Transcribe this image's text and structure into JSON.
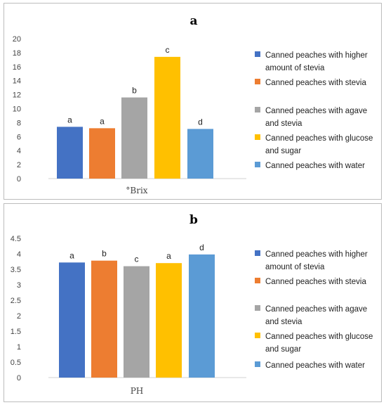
{
  "chart_data": [
    {
      "type": "bar",
      "panel_label": "a",
      "xlabel": "°Brix",
      "ylim": [
        0,
        20
      ],
      "yticks": [
        "0",
        "2",
        "4",
        "6",
        "8",
        "10",
        "12",
        "14",
        "16",
        "18",
        "20"
      ],
      "grid": false,
      "legend_position": "right",
      "series": [
        {
          "name": "Canned peaches with higher amount of stevia",
          "legend_lines": [
            "Canned peaches with higher",
            "amount of stevia"
          ],
          "value": 7.4,
          "label": "a",
          "color": "#4472C4"
        },
        {
          "name": "Canned peaches with stevia",
          "legend_lines": [
            "Canned peaches with stevia"
          ],
          "value": 7.2,
          "label": "a",
          "color": "#ED7D31"
        },
        {
          "name": "Canned peaches with agave and stevia",
          "legend_lines": [
            "Canned peaches with agave",
            "and stevia"
          ],
          "value": 11.6,
          "label": "b",
          "color": "#A5A5A5"
        },
        {
          "name": "Canned peaches with glucose and sugar",
          "legend_lines": [
            "Canned peaches with glucose",
            "and sugar"
          ],
          "value": 17.4,
          "label": "c",
          "color": "#FFC000"
        },
        {
          "name": "Canned peaches with water",
          "legend_lines": [
            "Canned peaches with water"
          ],
          "value": 7.1,
          "label": "d",
          "color": "#5B9BD5"
        }
      ]
    },
    {
      "type": "bar",
      "panel_label": "b",
      "xlabel": "PH",
      "ylim": [
        0,
        4.5
      ],
      "yticks": [
        "0",
        "0.5",
        "1",
        "1.5",
        "2",
        "2.5",
        "3",
        "3.5",
        "4",
        "4.5"
      ],
      "grid": false,
      "legend_position": "right",
      "series": [
        {
          "name": "Canned peaches with higher amount of stevia",
          "legend_lines": [
            "Canned peaches with higher",
            "amount of stevia"
          ],
          "value": 3.72,
          "label": "a",
          "color": "#4472C4"
        },
        {
          "name": "Canned peaches with stevia",
          "legend_lines": [
            "Canned peaches with stevia"
          ],
          "value": 3.78,
          "label": "b",
          "color": "#ED7D31"
        },
        {
          "name": "Canned peaches with agave and stevia",
          "legend_lines": [
            "Canned peaches with agave",
            "and stevia"
          ],
          "value": 3.6,
          "label": "c",
          "color": "#A5A5A5"
        },
        {
          "name": "Canned peaches with glucose and sugar",
          "legend_lines": [
            "Canned peaches with glucose",
            "and sugar"
          ],
          "value": 3.7,
          "label": "a",
          "color": "#FFC000"
        },
        {
          "name": "Canned peaches with water",
          "legend_lines": [
            "Canned peaches with water"
          ],
          "value": 3.98,
          "label": "d",
          "color": "#5B9BD5"
        }
      ]
    }
  ]
}
